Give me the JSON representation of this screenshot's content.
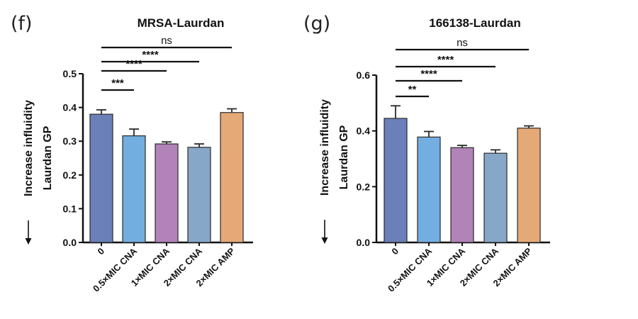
{
  "chart_data": [
    {
      "type": "bar",
      "panel": "(f)",
      "title": "MRSA-Laurdan",
      "ylabel_arrow": "Increase influidity",
      "ylabel": "Laurdan GP",
      "ylim": [
        0,
        0.5
      ],
      "yticks": [
        "0.0",
        "0.1",
        "0.2",
        "0.3",
        "0.4",
        "0.5"
      ],
      "categories": [
        "0",
        "0.5×MIC CNA",
        "1×MIC CNA",
        "2×MIC CNA",
        "2×MIC AMP"
      ],
      "values": [
        0.38,
        0.316,
        0.292,
        0.282,
        0.385
      ],
      "errors": [
        0.013,
        0.02,
        0.006,
        0.01,
        0.011
      ],
      "colors": [
        "#6b7fb8",
        "#73aee0",
        "#b183b8",
        "#87a7c9",
        "#e5a977"
      ],
      "comparisons": [
        {
          "to": 1,
          "label": "***"
        },
        {
          "to": 2,
          "label": "****"
        },
        {
          "to": 3,
          "label": "****"
        },
        {
          "to": 4,
          "label": "ns"
        }
      ]
    },
    {
      "type": "bar",
      "panel": "(g)",
      "title": "166138-Laurdan",
      "ylabel_arrow": "Increase influidity",
      "ylabel": "Laurdan GP",
      "ylim": [
        0,
        0.6
      ],
      "yticks": [
        "0.0",
        "0.2",
        "0.4",
        "0.6"
      ],
      "categories": [
        "0",
        "0.5×MIC CNA",
        "1×MIC CNA",
        "2×MIC CNA",
        "2×MIC AMP"
      ],
      "values": [
        0.445,
        0.378,
        0.34,
        0.32,
        0.41
      ],
      "errors": [
        0.045,
        0.02,
        0.008,
        0.012,
        0.008
      ],
      "colors": [
        "#6b7fb8",
        "#73aee0",
        "#b183b8",
        "#87a7c9",
        "#e5a977"
      ],
      "comparisons": [
        {
          "to": 1,
          "label": "**"
        },
        {
          "to": 2,
          "label": "****"
        },
        {
          "to": 3,
          "label": "****"
        },
        {
          "to": 4,
          "label": "ns"
        }
      ]
    }
  ]
}
